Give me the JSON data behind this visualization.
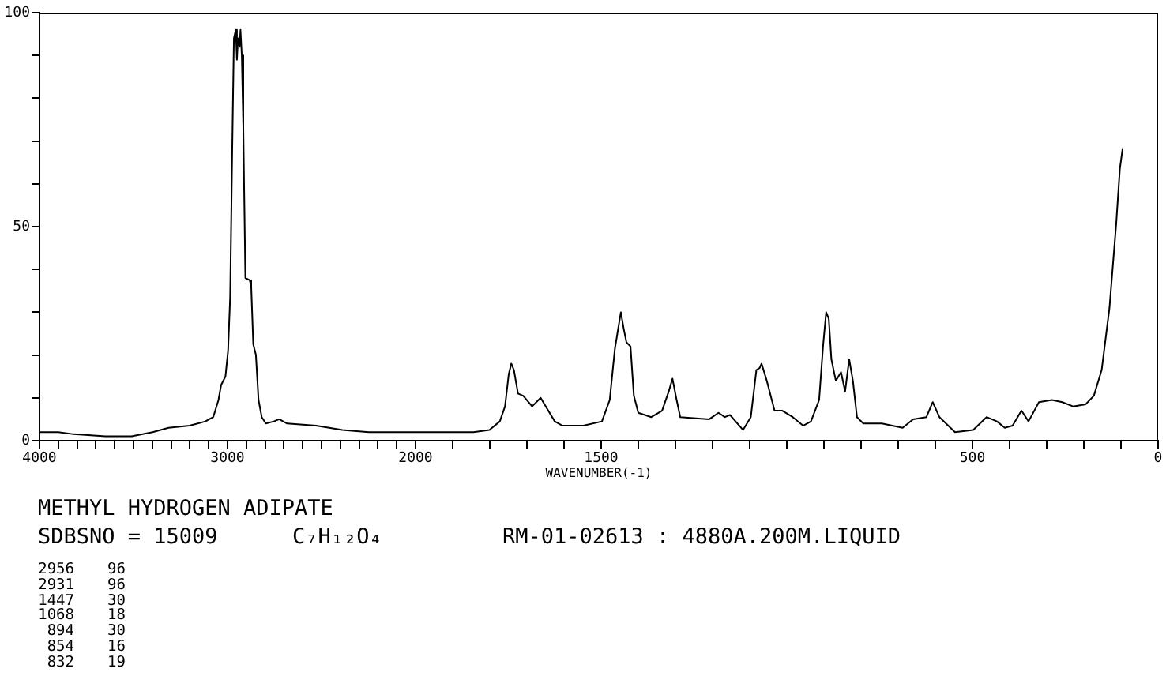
{
  "chart_data": [
    {
      "type": "line",
      "title": "METHYL HYDROGEN ADIPATE",
      "annotations": [
        "SDBSNO = 15009",
        "C₇H₁₂O₄",
        "RM-01-02613 : 4880A.200M.LIQUID",
        "2956",
        "96",
        "2931",
        "96",
        "1447",
        "30",
        "1068",
        "18",
        "894",
        "30",
        "854",
        "16",
        "832",
        "19"
      ],
      "x": [
        4000,
        3900,
        3818,
        3650,
        3510,
        3398,
        3314,
        3202,
        3118,
        3076,
        3048,
        3034,
        3011,
        2997,
        2986,
        2975,
        2966,
        2956,
        2950,
        2944,
        2936,
        2931,
        2924,
        2916,
        2905,
        2882,
        2874,
        2863,
        2849,
        2835,
        2818,
        2796,
        2754,
        2725,
        2683,
        2529,
        2389,
        2249,
        2100,
        2000
      ],
      "values": [
        2,
        2,
        1.5,
        1,
        1,
        2,
        3,
        3.5,
        4.5,
        5.5,
        9.5,
        13,
        15,
        21,
        33.5,
        68,
        94,
        96,
        89,
        94,
        92,
        96,
        90,
        73,
        38,
        37.5,
        36,
        22.5,
        20,
        9.5,
        5.5,
        4,
        4.5,
        5,
        4,
        3.5,
        2.5,
        2,
        2,
        2
      ],
      "color": "#000000",
      "marker": "none",
      "xlim": [
        4000,
        2000
      ],
      "xticks": [
        4000,
        {
          "value": 3900,
          "label": null
        },
        {
          "value": 3800,
          "label": null
        },
        {
          "value": 3700,
          "label": null
        },
        {
          "value": 3600,
          "label": null
        },
        {
          "value": 3500,
          "label": null
        },
        {
          "value": 3400,
          "label": null
        },
        {
          "value": 3300,
          "label": null
        },
        {
          "value": 3200,
          "label": null
        },
        {
          "value": 3100,
          "label": null
        },
        3000,
        {
          "value": 2900,
          "label": null
        },
        {
          "value": 2800,
          "label": null
        },
        {
          "value": 2700,
          "label": null
        },
        {
          "value": 2600,
          "label": null
        },
        {
          "value": 2500,
          "label": null
        },
        {
          "value": 2400,
          "label": null
        },
        {
          "value": 2300,
          "label": null
        },
        {
          "value": 2200,
          "label": null
        },
        {
          "value": 2100,
          "label": null
        },
        2000
      ],
      "ylim": [
        0,
        100
      ],
      "yticks": [
        0,
        {
          "value": 10,
          "label": null
        },
        {
          "value": 20,
          "label": null
        },
        {
          "value": 30,
          "label": null
        },
        {
          "value": 40,
          "label": null
        },
        50,
        {
          "value": 60,
          "label": null
        },
        {
          "value": 70,
          "label": null
        },
        {
          "value": 80,
          "label": null
        },
        {
          "value": 90,
          "label": null
        },
        100
      ]
    },
    {
      "type": "line",
      "xlabel": "WAVENUMBER(-1)",
      "x": [
        2000,
        1914,
        1844,
        1801,
        1773,
        1759,
        1749,
        1742,
        1735,
        1724,
        1710,
        1686,
        1663,
        1646,
        1625,
        1604,
        1548,
        1498,
        1477,
        1463,
        1447,
        1439,
        1432,
        1421,
        1412,
        1400,
        1365,
        1336,
        1318,
        1308,
        1298,
        1287,
        1209,
        1184,
        1167,
        1153,
        1118,
        1097,
        1082,
        1073,
        1068,
        1054,
        1033,
        1012,
        984,
        956,
        935,
        913,
        902,
        894,
        887,
        880,
        868,
        854,
        843,
        832,
        822,
        811,
        794,
        744,
        688,
        660,
        624,
        607,
        589,
        547,
        498,
        462,
        434,
        413,
        392,
        368,
        349,
        321,
        286,
        258,
        229,
        195,
        173,
        152,
        131,
        113,
        103,
        96
      ],
      "values": [
        2,
        2,
        2,
        2.5,
        4.5,
        8,
        15.5,
        18,
        16.5,
        11,
        10.5,
        8,
        10,
        7.5,
        4.5,
        3.5,
        3.5,
        4.5,
        9.5,
        21.5,
        30,
        26,
        23,
        22,
        10.5,
        6.5,
        5.5,
        7,
        11.5,
        14.5,
        10,
        5.5,
        5,
        6.5,
        5.5,
        6,
        2.5,
        5.5,
        16.5,
        17,
        18,
        14,
        7,
        7,
        5.5,
        3.5,
        4.5,
        9.5,
        22.5,
        30,
        28.5,
        19,
        14,
        16,
        11.5,
        19,
        14,
        5.5,
        4,
        4,
        3,
        5,
        5.5,
        9,
        5.5,
        2,
        2.5,
        5.5,
        4.5,
        3,
        3.5,
        7,
        4.5,
        9,
        9.5,
        9,
        8,
        8.5,
        10.5,
        16.5,
        31,
        50.5,
        63.5,
        68
      ],
      "color": "#000000",
      "marker": "none",
      "xlim": [
        2000,
        0
      ],
      "xticks": [
        {
          "value": 1900,
          "label": null
        },
        {
          "value": 1800,
          "label": null
        },
        {
          "value": 1700,
          "label": null
        },
        {
          "value": 1600,
          "label": null
        },
        1500,
        {
          "value": 1400,
          "label": null
        },
        {
          "value": 1300,
          "label": null
        },
        {
          "value": 1200,
          "label": null
        },
        {
          "value": 1100,
          "label": null
        },
        {
          "value": 1000,
          "label": null
        },
        {
          "value": 900,
          "label": null
        },
        {
          "value": 800,
          "label": null
        },
        {
          "value": 700,
          "label": null
        },
        {
          "value": 600,
          "label": null
        },
        500,
        {
          "value": 400,
          "label": null
        },
        {
          "value": 300,
          "label": null
        },
        {
          "value": 200,
          "label": null
        },
        {
          "value": 100,
          "label": null
        },
        0
      ],
      "ylim": [
        0,
        100
      ],
      "tick_labels": "x"
    }
  ]
}
